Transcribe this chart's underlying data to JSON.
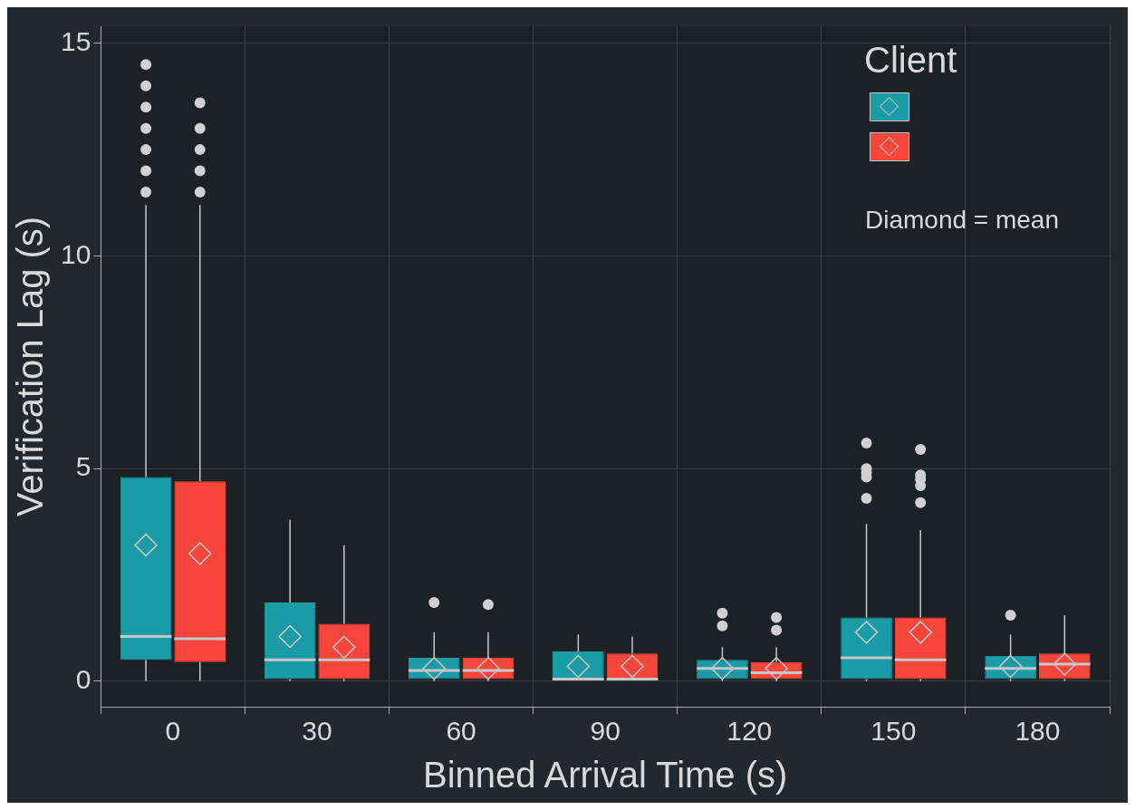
{
  "chart_data": {
    "type": "box",
    "xlabel": "Binned Arrival Time (s)",
    "ylabel": "Verification Lag (s)",
    "legend_title": "Client",
    "annotations": [
      "Diamond = mean"
    ],
    "categories": [
      "0",
      "30",
      "60",
      "90",
      "120",
      "150",
      "180"
    ],
    "ylim": [
      -0.6,
      15.4
    ],
    "yticks": [
      0,
      5,
      10,
      15
    ],
    "grid": true,
    "marker": "diamond",
    "series": [
      {
        "color": "#1b9ba6",
        "boxes": [
          {
            "low": 0,
            "q1": 0.5,
            "median": 1.05,
            "q3": 4.8,
            "high": 11.2,
            "mean": 3.2,
            "outliers": [
              11.5,
              12,
              12.5,
              13,
              13.5,
              14,
              14.5
            ]
          },
          {
            "low": 0,
            "q1": 0.05,
            "median": 0.5,
            "q3": 1.85,
            "high": 3.8,
            "mean": 1.05
          },
          {
            "low": 0,
            "q1": 0.05,
            "median": 0.25,
            "q3": 0.55,
            "high": 1.15,
            "mean": 0.3,
            "outliers": [
              1.85
            ]
          },
          {
            "low": 0,
            "q1": 0,
            "median": 0.05,
            "q3": 0.7,
            "high": 1.1,
            "mean": 0.35
          },
          {
            "low": 0,
            "q1": 0.05,
            "median": 0.3,
            "q3": 0.5,
            "high": 0.8,
            "mean": 0.3,
            "outliers": [
              1.3,
              1.6
            ]
          },
          {
            "low": 0,
            "q1": 0.05,
            "median": 0.55,
            "q3": 1.5,
            "high": 3.7,
            "mean": 1.15,
            "outliers": [
              4.3,
              4.8,
              4.9,
              5,
              5.6
            ]
          },
          {
            "low": 0,
            "q1": 0.05,
            "median": 0.3,
            "q3": 0.6,
            "high": 1.1,
            "mean": 0.35,
            "outliers": [
              1.55
            ]
          }
        ]
      },
      {
        "color": "#f9463c",
        "boxes": [
          {
            "low": 0,
            "q1": 0.45,
            "median": 1,
            "q3": 4.7,
            "high": 11.2,
            "mean": 3,
            "outliers": [
              11.5,
              12,
              12.5,
              13,
              13.6
            ]
          },
          {
            "low": 0,
            "q1": 0.05,
            "median": 0.5,
            "q3": 1.35,
            "high": 3.2,
            "mean": 0.8
          },
          {
            "low": 0,
            "q1": 0.05,
            "median": 0.25,
            "q3": 0.55,
            "high": 1.15,
            "mean": 0.3,
            "outliers": [
              1.8
            ]
          },
          {
            "low": 0,
            "q1": 0,
            "median": 0.05,
            "q3": 0.65,
            "high": 1.05,
            "mean": 0.35
          },
          {
            "low": 0,
            "q1": 0.05,
            "median": 0.2,
            "q3": 0.45,
            "high": 0.8,
            "mean": 0.3,
            "outliers": [
              1.2,
              1.5
            ]
          },
          {
            "low": 0,
            "q1": 0.05,
            "median": 0.5,
            "q3": 1.5,
            "high": 3.55,
            "mean": 1.15,
            "outliers": [
              4.2,
              4.6,
              4.75,
              4.85,
              5.45
            ]
          },
          {
            "low": 0,
            "q1": 0.05,
            "median": 0.4,
            "q3": 0.65,
            "high": 1.55,
            "mean": 0.4
          }
        ]
      }
    ]
  }
}
